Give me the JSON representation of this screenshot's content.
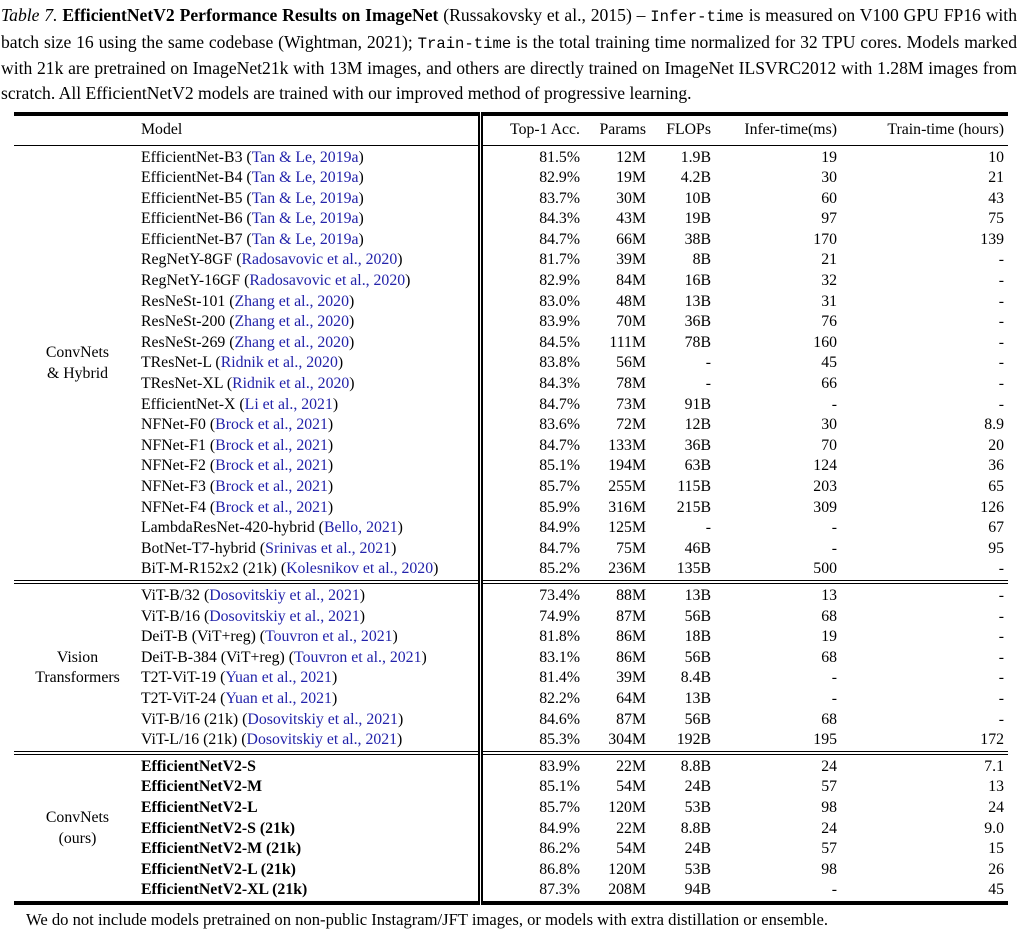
{
  "colors": {
    "link": "#2222aa",
    "text": "#000000",
    "rule": "#000000"
  },
  "caption": {
    "segments": [
      {
        "text": "Table 7. ",
        "style": "italic"
      },
      {
        "text": "EfficientNetV2 Performance Results on ImageNet",
        "style": "bold"
      },
      {
        "text": " (",
        "style": "normal"
      },
      {
        "text": "Russakovsky et al., 2015",
        "style": "link"
      },
      {
        "text": ") – ",
        "style": "normal"
      },
      {
        "text": "Infer-time",
        "style": "mono"
      },
      {
        "text": " is measured on V100 GPU FP16 with batch size 16 using the same codebase (",
        "style": "normal"
      },
      {
        "text": "Wightman, 2021",
        "style": "link"
      },
      {
        "text": "); ",
        "style": "normal"
      },
      {
        "text": "Train-time",
        "style": "mono"
      },
      {
        "text": " is the total training time normalized for 32 TPU cores. Models marked with 21k are pretrained on ImageNet21k with 13M images, and others are directly trained on ImageNet ILSVRC2012 with 1.28M images from scratch. All EfficientNetV2 models are trained with our improved method of progressive learning.",
        "style": "normal"
      }
    ]
  },
  "table": {
    "headers": [
      "Model",
      "Top-1 Acc.",
      "Params",
      "FLOPs",
      "Infer-time(ms)",
      "Train-time (hours)"
    ],
    "groups": [
      {
        "label_lines": [
          "ConvNets",
          "& Hybrid"
        ],
        "bold": false,
        "rows": [
          {
            "model": "EfficientNet-B3",
            "cite": "Tan & Le, 2019a",
            "top1": "81.5%",
            "params": "12M",
            "flops": "1.9B",
            "infer": "19",
            "train": "10"
          },
          {
            "model": "EfficientNet-B4",
            "cite": "Tan & Le, 2019a",
            "top1": "82.9%",
            "params": "19M",
            "flops": "4.2B",
            "infer": "30",
            "train": "21"
          },
          {
            "model": "EfficientNet-B5",
            "cite": "Tan & Le, 2019a",
            "top1": "83.7%",
            "params": "30M",
            "flops": "10B",
            "infer": "60",
            "train": "43"
          },
          {
            "model": "EfficientNet-B6",
            "cite": "Tan & Le, 2019a",
            "top1": "84.3%",
            "params": "43M",
            "flops": "19B",
            "infer": "97",
            "train": "75"
          },
          {
            "model": "EfficientNet-B7",
            "cite": "Tan & Le, 2019a",
            "top1": "84.7%",
            "params": "66M",
            "flops": "38B",
            "infer": "170",
            "train": "139"
          },
          {
            "model": "RegNetY-8GF",
            "cite": "Radosavovic et al., 2020",
            "top1": "81.7%",
            "params": "39M",
            "flops": "8B",
            "infer": "21",
            "train": "-"
          },
          {
            "model": "RegNetY-16GF",
            "cite": "Radosavovic et al., 2020",
            "top1": "82.9%",
            "params": "84M",
            "flops": "16B",
            "infer": "32",
            "train": "-"
          },
          {
            "model": "ResNeSt-101",
            "cite": "Zhang et al., 2020",
            "top1": "83.0%",
            "params": "48M",
            "flops": "13B",
            "infer": "31",
            "train": "-"
          },
          {
            "model": "ResNeSt-200",
            "cite": "Zhang et al., 2020",
            "top1": "83.9%",
            "params": "70M",
            "flops": "36B",
            "infer": "76",
            "train": "-"
          },
          {
            "model": "ResNeSt-269",
            "cite": "Zhang et al., 2020",
            "top1": "84.5%",
            "params": "111M",
            "flops": "78B",
            "infer": "160",
            "train": "-"
          },
          {
            "model": "TResNet-L",
            "cite": "Ridnik et al., 2020",
            "top1": "83.8%",
            "params": "56M",
            "flops": "-",
            "infer": "45",
            "train": "-"
          },
          {
            "model": "TResNet-XL",
            "cite": "Ridnik et al., 2020",
            "top1": "84.3%",
            "params": "78M",
            "flops": "-",
            "infer": "66",
            "train": "-"
          },
          {
            "model": "EfficientNet-X",
            "cite": "Li et al., 2021",
            "top1": "84.7%",
            "params": "73M",
            "flops": "91B",
            "infer": "-",
            "train": "-"
          },
          {
            "model": "NFNet-F0",
            "cite": "Brock et al., 2021",
            "top1": "83.6%",
            "params": "72M",
            "flops": "12B",
            "infer": "30",
            "train": "8.9"
          },
          {
            "model": "NFNet-F1",
            "cite": "Brock et al., 2021",
            "top1": "84.7%",
            "params": "133M",
            "flops": "36B",
            "infer": "70",
            "train": "20"
          },
          {
            "model": "NFNet-F2",
            "cite": "Brock et al., 2021",
            "top1": "85.1%",
            "params": "194M",
            "flops": "63B",
            "infer": "124",
            "train": "36"
          },
          {
            "model": "NFNet-F3",
            "cite": "Brock et al., 2021",
            "top1": "85.7%",
            "params": "255M",
            "flops": "115B",
            "infer": "203",
            "train": "65"
          },
          {
            "model": "NFNet-F4",
            "cite": "Brock et al., 2021",
            "top1": "85.9%",
            "params": "316M",
            "flops": "215B",
            "infer": "309",
            "train": "126"
          },
          {
            "model": "LambdaResNet-420-hybrid",
            "cite": "Bello, 2021",
            "top1": "84.9%",
            "params": "125M",
            "flops": "-",
            "infer": "-",
            "train": "67"
          },
          {
            "model": "BotNet-T7-hybrid",
            "cite": "Srinivas et al., 2021",
            "top1": "84.7%",
            "params": "75M",
            "flops": "46B",
            "infer": "-",
            "train": "95"
          },
          {
            "model": "BiT-M-R152x2 (21k)",
            "cite": "Kolesnikov et al., 2020",
            "top1": "85.2%",
            "params": "236M",
            "flops": "135B",
            "infer": "500",
            "train": "-"
          }
        ]
      },
      {
        "label_lines": [
          "Vision",
          "Transformers"
        ],
        "bold": false,
        "rows": [
          {
            "model": "ViT-B/32",
            "cite": "Dosovitskiy et al., 2021",
            "top1": "73.4%",
            "params": "88M",
            "flops": "13B",
            "infer": "13",
            "train": "-"
          },
          {
            "model": "ViT-B/16",
            "cite": "Dosovitskiy et al., 2021",
            "top1": "74.9%",
            "params": "87M",
            "flops": "56B",
            "infer": "68",
            "train": "-"
          },
          {
            "model": "DeiT-B (ViT+reg)",
            "cite": "Touvron et al., 2021",
            "top1": "81.8%",
            "params": "86M",
            "flops": "18B",
            "infer": "19",
            "train": "-"
          },
          {
            "model": "DeiT-B-384 (ViT+reg)",
            "cite": "Touvron et al., 2021",
            "top1": "83.1%",
            "params": "86M",
            "flops": "56B",
            "infer": "68",
            "train": "-"
          },
          {
            "model": "T2T-ViT-19",
            "cite": "Yuan et al., 2021",
            "top1": "81.4%",
            "params": "39M",
            "flops": "8.4B",
            "infer": "-",
            "train": "-"
          },
          {
            "model": "T2T-ViT-24",
            "cite": "Yuan et al., 2021",
            "top1": "82.2%",
            "params": "64M",
            "flops": "13B",
            "infer": "-",
            "train": "-"
          },
          {
            "model": "ViT-B/16 (21k)",
            "cite": "Dosovitskiy et al., 2021",
            "top1": "84.6%",
            "params": "87M",
            "flops": "56B",
            "infer": "68",
            "train": "-"
          },
          {
            "model": "ViT-L/16 (21k)",
            "cite": "Dosovitskiy et al., 2021",
            "top1": "85.3%",
            "params": "304M",
            "flops": "192B",
            "infer": "195",
            "train": "172"
          }
        ]
      },
      {
        "label_lines": [
          "ConvNets",
          "(ours)"
        ],
        "bold": true,
        "rows": [
          {
            "model": "EfficientNetV2-S",
            "cite": null,
            "top1": "83.9%",
            "params": "22M",
            "flops": "8.8B",
            "infer": "24",
            "train": "7.1"
          },
          {
            "model": "EfficientNetV2-M",
            "cite": null,
            "top1": "85.1%",
            "params": "54M",
            "flops": "24B",
            "infer": "57",
            "train": "13"
          },
          {
            "model": "EfficientNetV2-L",
            "cite": null,
            "top1": "85.7%",
            "params": "120M",
            "flops": "53B",
            "infer": "98",
            "train": "24"
          },
          {
            "model": "EfficientNetV2-S (21k)",
            "cite": null,
            "top1": "84.9%",
            "params": "22M",
            "flops": "8.8B",
            "infer": "24",
            "train": "9.0"
          },
          {
            "model": "EfficientNetV2-M (21k)",
            "cite": null,
            "top1": "86.2%",
            "params": "54M",
            "flops": "24B",
            "infer": "57",
            "train": "15"
          },
          {
            "model": "EfficientNetV2-L (21k)",
            "cite": null,
            "top1": "86.8%",
            "params": "120M",
            "flops": "53B",
            "infer": "98",
            "train": "26"
          },
          {
            "model": "EfficientNetV2-XL (21k)",
            "cite": null,
            "top1": "87.3%",
            "params": "208M",
            "flops": "94B",
            "infer": "-",
            "train": "45"
          }
        ]
      }
    ]
  },
  "footnote": "We do not include models pretrained on non-public Instagram/JFT images, or models with extra distillation or ensemble."
}
